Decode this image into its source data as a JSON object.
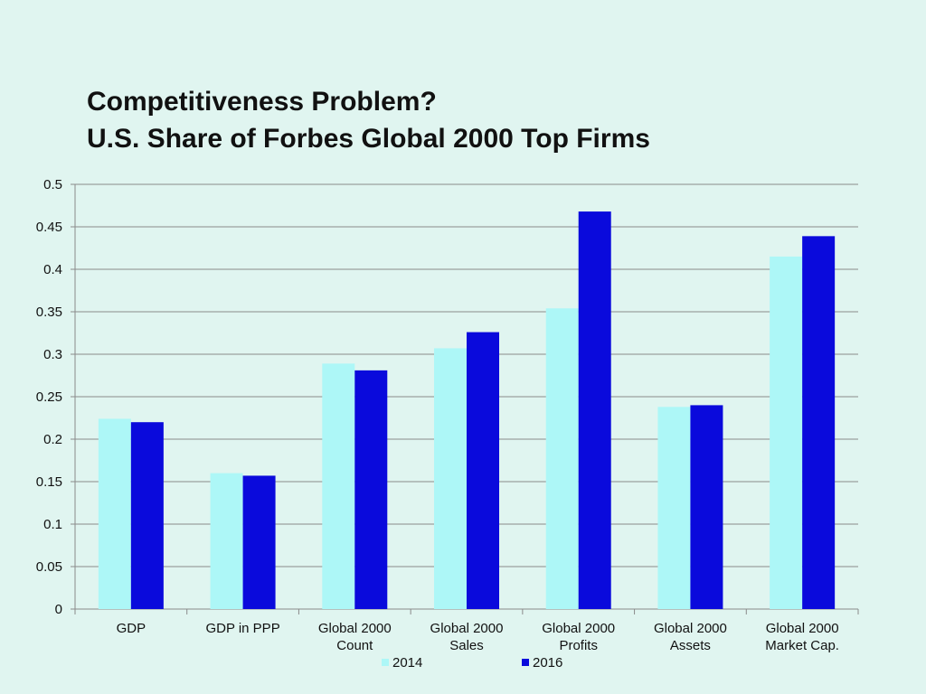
{
  "slide": {
    "title_line1": "Competitiveness Problem?",
    "title_line2": "U.S. Share of Forbes Global 2000 Top Firms"
  },
  "chart_data": {
    "type": "bar",
    "categories": [
      [
        "GDP"
      ],
      [
        "GDP in PPP"
      ],
      [
        "Global 2000",
        "Count"
      ],
      [
        "Global 2000",
        "Sales"
      ],
      [
        "Global 2000",
        "Profits"
      ],
      [
        "Global 2000",
        "Assets"
      ],
      [
        "Global 2000",
        "Market Cap."
      ]
    ],
    "series": [
      {
        "name": "2014",
        "color": "#adf7f7",
        "values": [
          0.224,
          0.16,
          0.289,
          0.307,
          0.354,
          0.238,
          0.415
        ]
      },
      {
        "name": "2016",
        "color": "#0a0adc",
        "values": [
          0.22,
          0.157,
          0.281,
          0.326,
          0.468,
          0.24,
          0.439
        ]
      }
    ],
    "ylim": [
      0,
      0.5
    ],
    "yticks": [
      "0",
      "0.05",
      "0.1",
      "0.15",
      "0.2",
      "0.25",
      "0.3",
      "0.35",
      "0.4",
      "0.45",
      "0.5"
    ],
    "grid": true,
    "legend": "bottom",
    "gridline_color": "#8a8a8a"
  }
}
